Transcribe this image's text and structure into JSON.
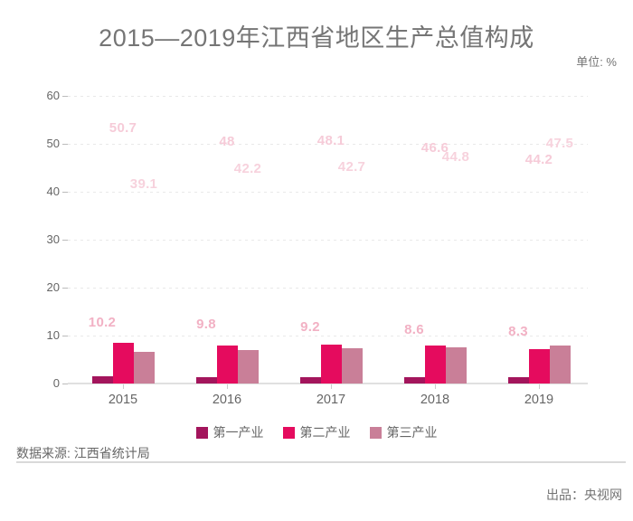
{
  "chart_data": {
    "type": "bar",
    "title": "2015—2019年江西省地区生产总值构成",
    "unit_label": "单位: %",
    "unit": "%",
    "categories": [
      "2015",
      "2016",
      "2017",
      "2018",
      "2019"
    ],
    "series": [
      {
        "name": "第一产业",
        "color": "#a3155c",
        "label_color": "#f2b1c4",
        "values": [
          10.2,
          9.8,
          9.2,
          8.6,
          8.3
        ],
        "displayed_bar_heights": [
          1.5,
          1.3,
          1.3,
          1.3,
          1.3
        ]
      },
      {
        "name": "第二产业",
        "color": "#e50b5e",
        "label_color": "#f6cbd8",
        "values": [
          50.7,
          48,
          48.1,
          46.6,
          44.2
        ],
        "displayed_bar_heights": [
          8.5,
          7.9,
          8.1,
          7.9,
          7.2
        ]
      },
      {
        "name": "第三产业",
        "color": "#c97f98",
        "label_color": "#f7d2dd",
        "values": [
          39.1,
          42.2,
          42.7,
          44.8,
          47.5
        ],
        "displayed_bar_heights": [
          6.6,
          7.0,
          7.4,
          7.5,
          7.9
        ]
      }
    ],
    "ylim": [
      0,
      60
    ],
    "y_ticks": [
      0,
      10,
      20,
      30,
      40,
      50,
      60
    ],
    "grid": "horizontal dashed gridlines, no vertical gridlines",
    "legend_position": "bottom center",
    "value_labels": "final percentage values shown as floating pink labels above each bar position"
  },
  "footer": {
    "source": "数据来源: 江西省统计局",
    "producer": "出品：央视网"
  }
}
